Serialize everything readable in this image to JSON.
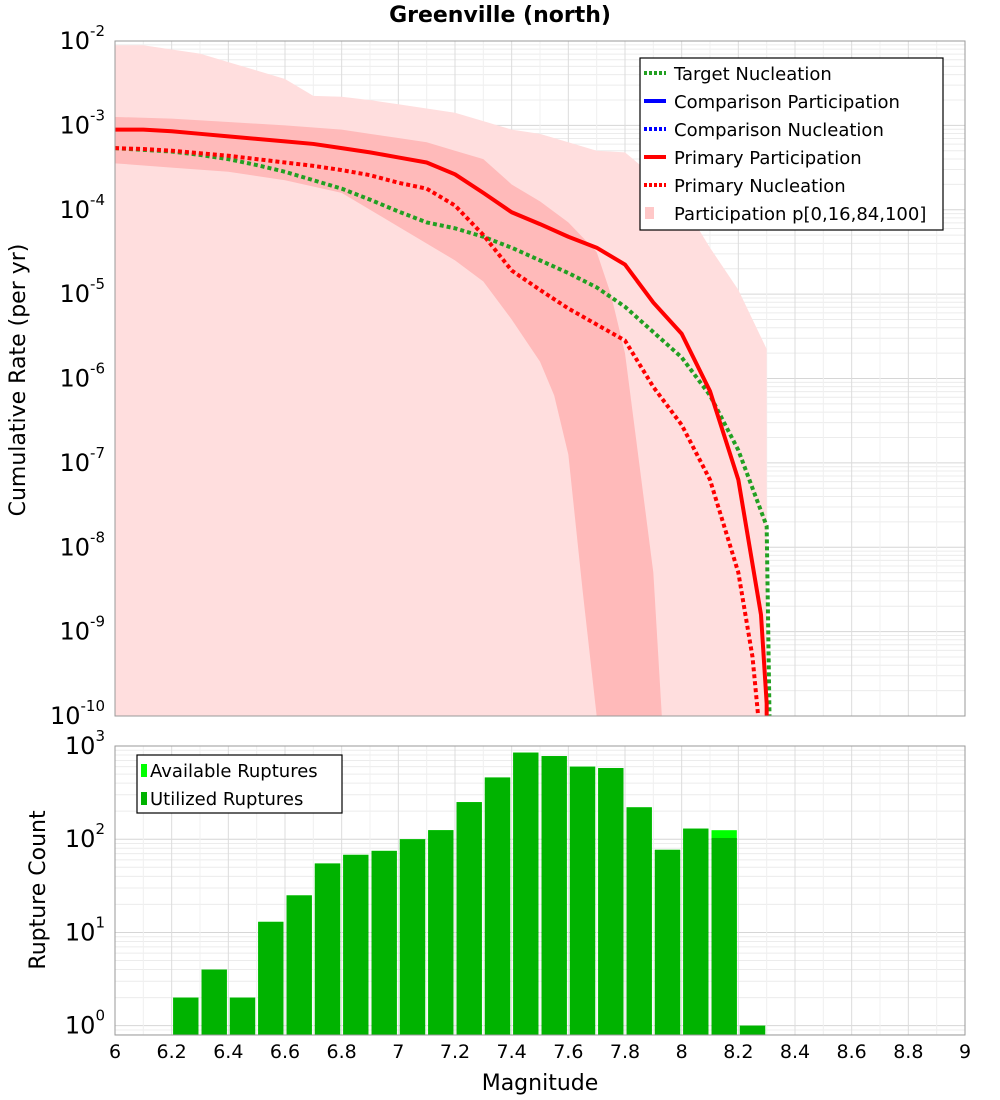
{
  "chart_data": [
    {
      "type": "line",
      "title": "Greenville (north)",
      "xlabel": "",
      "ylabel": "Cumulative Rate (per yr)",
      "xlim": [
        6,
        9
      ],
      "ylim_log10": [
        -10,
        -2
      ],
      "y_tick_exponents": [
        "-2",
        "-3",
        "-4",
        "-5",
        "-6",
        "-7",
        "-8",
        "-9",
        "-10"
      ],
      "y_tick_base": "10",
      "grid": true,
      "legend_position": "top-right",
      "legend": [
        {
          "label": "Target Nucleation",
          "color": "#22a022",
          "style": "dotted"
        },
        {
          "label": "Comparison Participation",
          "color": "#0000ff",
          "style": "solid"
        },
        {
          "label": "Comparison Nucleation",
          "color": "#0000ff",
          "style": "dotted"
        },
        {
          "label": "Primary Participation",
          "color": "#ff0000",
          "style": "solid"
        },
        {
          "label": "Primary Nucleation",
          "color": "#ff0000",
          "style": "dotted"
        },
        {
          "label": "Participation p[0,16,84,100]",
          "color": "#ffc8c8",
          "style": "band"
        }
      ],
      "bands": {
        "outer": {
          "name": "Participation p0-p100",
          "color": "#ffdede",
          "upper": [
            [
              6.0,
              -2.05
            ],
            [
              6.1,
              -2.05
            ],
            [
              6.2,
              -2.1
            ],
            [
              6.3,
              -2.15
            ],
            [
              6.4,
              -2.25
            ],
            [
              6.5,
              -2.35
            ],
            [
              6.6,
              -2.45
            ],
            [
              6.7,
              -2.65
            ],
            [
              6.8,
              -2.66
            ],
            [
              6.9,
              -2.7
            ],
            [
              7.0,
              -2.75
            ],
            [
              7.1,
              -2.8
            ],
            [
              7.2,
              -2.85
            ],
            [
              7.3,
              -2.95
            ],
            [
              7.4,
              -3.05
            ],
            [
              7.5,
              -3.1
            ],
            [
              7.6,
              -3.2
            ],
            [
              7.7,
              -3.3
            ],
            [
              7.8,
              -3.32
            ],
            [
              7.9,
              -3.6
            ],
            [
              8.0,
              -3.9
            ],
            [
              8.1,
              -4.45
            ],
            [
              8.2,
              -4.95
            ],
            [
              8.3,
              -5.65
            ],
            [
              8.3,
              -10.0
            ]
          ],
          "lower_left_x": 6.0
        },
        "inner": {
          "name": "Participation p16-p84",
          "color": "#ffbaba",
          "upper": [
            [
              6.0,
              -2.9
            ],
            [
              6.2,
              -2.92
            ],
            [
              6.4,
              -2.96
            ],
            [
              6.6,
              -3.0
            ],
            [
              6.8,
              -3.05
            ],
            [
              6.9,
              -3.1
            ],
            [
              7.0,
              -3.15
            ],
            [
              7.1,
              -3.2
            ],
            [
              7.2,
              -3.3
            ],
            [
              7.3,
              -3.4
            ],
            [
              7.4,
              -3.7
            ],
            [
              7.5,
              -3.9
            ],
            [
              7.6,
              -4.15
            ],
            [
              7.7,
              -4.5
            ],
            [
              7.75,
              -5.0
            ],
            [
              7.8,
              -5.7
            ],
            [
              7.85,
              -7.0
            ],
            [
              7.9,
              -8.3
            ],
            [
              7.93,
              -10.0
            ]
          ],
          "lower": [
            [
              6.0,
              -3.45
            ],
            [
              6.2,
              -3.5
            ],
            [
              6.4,
              -3.55
            ],
            [
              6.6,
              -3.65
            ],
            [
              6.8,
              -3.8
            ],
            [
              7.0,
              -4.2
            ],
            [
              7.1,
              -4.4
            ],
            [
              7.2,
              -4.6
            ],
            [
              7.3,
              -4.85
            ],
            [
              7.4,
              -5.3
            ],
            [
              7.5,
              -5.8
            ],
            [
              7.55,
              -6.2
            ],
            [
              7.6,
              -6.9
            ],
            [
              7.65,
              -8.5
            ],
            [
              7.7,
              -10.0
            ]
          ]
        }
      },
      "series": [
        {
          "name": "Target Nucleation",
          "color": "#22a022",
          "style": "dotted",
          "points": [
            [
              6.0,
              -3.27
            ],
            [
              6.1,
              -3.29
            ],
            [
              6.2,
              -3.31
            ],
            [
              6.3,
              -3.35
            ],
            [
              6.4,
              -3.4
            ],
            [
              6.5,
              -3.47
            ],
            [
              6.6,
              -3.55
            ],
            [
              6.7,
              -3.65
            ],
            [
              6.8,
              -3.75
            ],
            [
              6.9,
              -3.88
            ],
            [
              7.0,
              -4.02
            ],
            [
              7.1,
              -4.15
            ],
            [
              7.2,
              -4.22
            ],
            [
              7.3,
              -4.32
            ],
            [
              7.4,
              -4.45
            ],
            [
              7.5,
              -4.6
            ],
            [
              7.6,
              -4.75
            ],
            [
              7.7,
              -4.92
            ],
            [
              7.8,
              -5.15
            ],
            [
              7.9,
              -5.45
            ],
            [
              8.0,
              -5.75
            ],
            [
              8.1,
              -6.2
            ],
            [
              8.2,
              -6.85
            ],
            [
              8.3,
              -7.75
            ],
            [
              8.31,
              -10.0
            ]
          ]
        },
        {
          "name": "Primary Participation",
          "color": "#ff0000",
          "style": "solid",
          "points": [
            [
              6.0,
              -3.05
            ],
            [
              6.1,
              -3.05
            ],
            [
              6.2,
              -3.07
            ],
            [
              6.3,
              -3.1
            ],
            [
              6.4,
              -3.13
            ],
            [
              6.5,
              -3.16
            ],
            [
              6.6,
              -3.19
            ],
            [
              6.7,
              -3.22
            ],
            [
              6.8,
              -3.27
            ],
            [
              6.9,
              -3.32
            ],
            [
              7.0,
              -3.38
            ],
            [
              7.1,
              -3.44
            ],
            [
              7.2,
              -3.58
            ],
            [
              7.3,
              -3.8
            ],
            [
              7.4,
              -4.03
            ],
            [
              7.5,
              -4.17
            ],
            [
              7.6,
              -4.32
            ],
            [
              7.7,
              -4.45
            ],
            [
              7.8,
              -4.65
            ],
            [
              7.9,
              -5.1
            ],
            [
              8.0,
              -5.47
            ],
            [
              8.1,
              -6.15
            ],
            [
              8.2,
              -7.2
            ],
            [
              8.28,
              -8.8
            ],
            [
              8.3,
              -9.85
            ],
            [
              8.3,
              -10.0
            ]
          ]
        },
        {
          "name": "Primary Nucleation",
          "color": "#ff0000",
          "style": "dotted",
          "points": [
            [
              6.0,
              -3.27
            ],
            [
              6.1,
              -3.28
            ],
            [
              6.2,
              -3.3
            ],
            [
              6.3,
              -3.33
            ],
            [
              6.4,
              -3.36
            ],
            [
              6.5,
              -3.4
            ],
            [
              6.6,
              -3.44
            ],
            [
              6.7,
              -3.48
            ],
            [
              6.8,
              -3.53
            ],
            [
              6.9,
              -3.59
            ],
            [
              7.0,
              -3.68
            ],
            [
              7.1,
              -3.75
            ],
            [
              7.2,
              -3.95
            ],
            [
              7.3,
              -4.3
            ],
            [
              7.4,
              -4.72
            ],
            [
              7.5,
              -4.95
            ],
            [
              7.6,
              -5.17
            ],
            [
              7.7,
              -5.36
            ],
            [
              7.8,
              -5.55
            ],
            [
              7.9,
              -6.1
            ],
            [
              8.0,
              -6.55
            ],
            [
              8.1,
              -7.2
            ],
            [
              8.2,
              -8.3
            ],
            [
              8.25,
              -9.3
            ],
            [
              8.27,
              -10.0
            ]
          ]
        }
      ]
    },
    {
      "type": "bar",
      "title": "",
      "xlabel": "Magnitude",
      "ylabel": "Rupture Count",
      "xlim": [
        6,
        9
      ],
      "x_ticks": [
        "6",
        "6.2",
        "6.4",
        "6.6",
        "6.8",
        "7",
        "7.2",
        "7.4",
        "7.6",
        "7.8",
        "8",
        "8.2",
        "8.4",
        "8.6",
        "8.8",
        "9"
      ],
      "ylim_log10": [
        -0.1,
        3
      ],
      "y_tick_exponents": [
        "0",
        "1",
        "2",
        "3"
      ],
      "y_tick_base": "10",
      "grid": true,
      "legend_position": "top-left",
      "legend": [
        {
          "label": "Available Ruptures",
          "color": "#00ff00"
        },
        {
          "label": "Utilized Ruptures",
          "color": "#00b300"
        }
      ],
      "bin_width": 0.1,
      "series": [
        {
          "name": "Available Ruptures",
          "color": "#00ff00",
          "x": [
            6.25,
            6.35,
            6.45,
            6.55,
            6.65,
            6.75,
            6.85,
            6.95,
            7.05,
            7.15,
            7.25,
            7.35,
            7.45,
            7.55,
            7.65,
            7.75,
            7.85,
            7.95,
            8.05,
            8.15,
            8.25
          ],
          "values": [
            2,
            4,
            2,
            13,
            25,
            55,
            68,
            75,
            100,
            125,
            250,
            460,
            850,
            780,
            600,
            580,
            220,
            77,
            130,
            125,
            1
          ]
        },
        {
          "name": "Utilized Ruptures",
          "color": "#00b300",
          "x": [
            6.25,
            6.35,
            6.45,
            6.55,
            6.65,
            6.75,
            6.85,
            6.95,
            7.05,
            7.15,
            7.25,
            7.35,
            7.45,
            7.55,
            7.65,
            7.75,
            7.85,
            7.95,
            8.05,
            8.15,
            8.25
          ],
          "values": [
            2,
            4,
            2,
            13,
            25,
            55,
            68,
            75,
            100,
            125,
            250,
            460,
            850,
            780,
            600,
            580,
            220,
            77,
            130,
            103,
            1
          ]
        }
      ]
    }
  ]
}
